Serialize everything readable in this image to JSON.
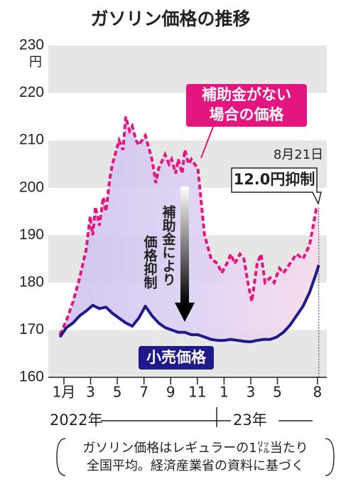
{
  "chart_data": {
    "type": "line",
    "title": "ガソリン価格の推移",
    "y_unit": "円",
    "ylim": [
      160,
      230
    ],
    "yticks": [
      160,
      170,
      180,
      190,
      200,
      210,
      220,
      230
    ],
    "grid": "bands",
    "xlim": [
      -1.17,
      19.7
    ],
    "xticks": [
      {
        "value": 0,
        "label": "1月"
      },
      {
        "value": 2,
        "label": "3"
      },
      {
        "value": 4,
        "label": "5"
      },
      {
        "value": 6,
        "label": "7"
      },
      {
        "value": 8,
        "label": "9"
      },
      {
        "value": 10,
        "label": "11"
      },
      {
        "value": 12,
        "label": "1"
      },
      {
        "value": 14,
        "label": "3"
      },
      {
        "value": 16,
        "label": "5"
      },
      {
        "value": 19,
        "label": "8"
      }
    ],
    "year_labels": [
      "2022年",
      "23年"
    ],
    "series": [
      {
        "name": "小売価格",
        "color": "#1e1a8c",
        "x": [
          -0.3,
          0.19,
          0.69,
          1.18,
          1.67,
          2.16,
          2.66,
          3.15,
          3.64,
          4.13,
          4.63,
          5.12,
          5.61,
          6.1,
          6.6,
          7.09,
          7.58,
          8.07,
          8.57,
          9.06,
          9.55,
          10.04,
          10.54,
          11.03,
          11.52,
          12.01,
          12.51,
          13.0,
          13.49,
          13.98,
          14.48,
          14.97,
          15.46,
          15.95,
          16.45,
          16.94,
          17.43,
          17.92,
          18.42,
          18.91,
          19.1
        ],
        "values": [
          168.5,
          170.5,
          171.5,
          173,
          174,
          175.2,
          174.5,
          174.8,
          173.5,
          172.5,
          171.5,
          170.8,
          172.5,
          175,
          173,
          171.5,
          170.5,
          170,
          169.5,
          169.5,
          169,
          169,
          168.5,
          168,
          167.8,
          167.8,
          168,
          167.8,
          167.6,
          167.5,
          167.8,
          168,
          168,
          168.5,
          169.5,
          171,
          173,
          175,
          178,
          182,
          183.7
        ]
      },
      {
        "name": [
          "補助金がない",
          "場合の価格"
        ],
        "color": "#e4157f",
        "x": [
          -0.3,
          0.19,
          0.69,
          1.18,
          1.67,
          1.97,
          2.16,
          2.36,
          2.66,
          2.95,
          3.15,
          3.44,
          3.64,
          4.13,
          4.43,
          4.63,
          4.92,
          5.12,
          5.41,
          5.61,
          6.1,
          6.6,
          6.89,
          7.09,
          7.58,
          7.88,
          8.07,
          8.37,
          8.57,
          8.86,
          9.06,
          9.35,
          9.55,
          10.04,
          10.54,
          11.03,
          11.52,
          11.82,
          12.21,
          12.51,
          12.8,
          13.19,
          13.49,
          13.79,
          14.08,
          14.48,
          14.77,
          15.07,
          15.46,
          15.76,
          16.15,
          16.45,
          16.94,
          17.43,
          17.92,
          18.42,
          18.91,
          19.1
        ],
        "values": [
          169,
          172,
          176,
          181,
          187,
          194,
          190,
          196,
          192,
          198,
          195,
          202,
          205,
          210,
          208,
          215,
          212,
          213,
          210,
          209,
          211,
          206,
          201,
          204,
          207,
          205,
          206,
          203,
          206,
          203,
          208,
          205,
          206,
          204,
          190,
          185,
          184,
          182,
          184,
          186,
          184,
          186,
          185,
          180,
          176,
          184,
          186,
          180,
          181,
          180,
          183,
          182,
          184,
          186,
          185,
          188,
          195.5,
          195.8
        ]
      }
    ],
    "arrow_label": [
      "補助金により",
      "価格抑制"
    ],
    "end_date": "8月21日",
    "end_label": "12.0円抑制",
    "note": [
      "ガソリン価格はレギュラーの1㍑当たり",
      "全国平均。経済産業省の資料に基づく"
    ]
  }
}
